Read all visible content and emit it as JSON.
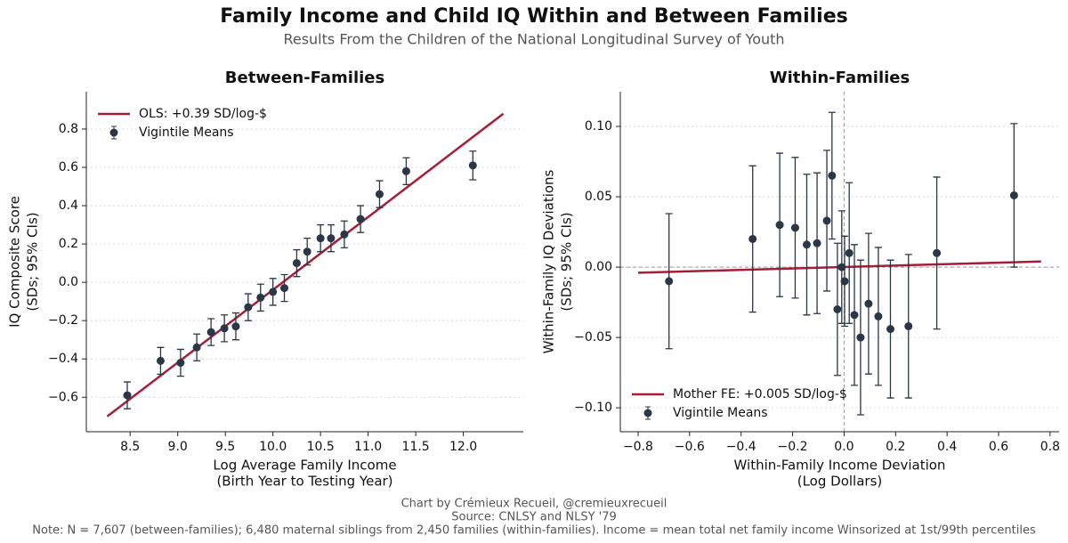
{
  "title": "Family Income and Child IQ Within and Between Families",
  "subtitle": "Results From the Children of the National Longitudinal Survey of Youth",
  "notes": [
    "Chart by Crémieux Recueil, @cremieuxrecueil",
    "Source: CNLSY and NLSY '79",
    "Note: N = 7,607 (between-families); 6,480 maternal siblings from 2,450 families (within-families). Income = mean total net family income Winsorized at 1st/99th percentiles"
  ],
  "chart_data": [
    {
      "type": "scatter",
      "title": "Between-Families",
      "x_label": [
        "Log Average Family Income",
        "(Birth Year to Testing Year)"
      ],
      "y_label": [
        "IQ Composite Score",
        "(SDs; 95% CIs)"
      ],
      "xlim": [
        8.04,
        12.63
      ],
      "ylim": [
        -0.78,
        0.995
      ],
      "xticks": [
        8.5,
        {
          "value": 9,
          "label": "9.0"
        },
        9.5,
        {
          "value": 10,
          "label": "10.0"
        },
        10.5,
        {
          "value": 11,
          "label": "11.0"
        },
        11.5,
        {
          "value": 12,
          "label": "12.0"
        }
      ],
      "yticks": [
        {
          "value": -0.6,
          "label": "−0.6"
        },
        {
          "value": -0.4,
          "label": "−0.4"
        },
        {
          "value": -0.2,
          "label": "−0.2"
        },
        {
          "value": 0,
          "label": "0.0"
        },
        0.2,
        0.4,
        0.6,
        0.8
      ],
      "grid": true,
      "zero_lines": false,
      "legend": "upper-left",
      "series": [
        {
          "name": "OLS: +0.39 SD/log-$",
          "type": "line",
          "color": "#a61e36",
          "x": [
            8.26,
            12.42
          ],
          "values": [
            -0.7,
            0.88
          ]
        },
        {
          "name": "Vigintile Means",
          "type": "errorbar",
          "color": "#2b3647",
          "x": [
            8.47,
            8.82,
            9.03,
            9.2,
            9.35,
            9.49,
            9.61,
            9.74,
            9.87,
            10.0,
            10.12,
            10.25,
            10.36,
            10.5,
            10.61,
            10.75,
            10.92,
            11.12,
            11.4,
            12.1
          ],
          "values": [
            -0.59,
            -0.41,
            -0.42,
            -0.34,
            -0.26,
            -0.24,
            -0.23,
            -0.13,
            -0.08,
            -0.05,
            -0.03,
            0.1,
            0.16,
            0.23,
            0.23,
            0.25,
            0.33,
            0.46,
            0.58,
            0.61
          ],
          "errors": [
            0.07,
            0.07,
            0.07,
            0.07,
            0.07,
            0.07,
            0.07,
            0.07,
            0.07,
            0.07,
            0.07,
            0.07,
            0.07,
            0.07,
            0.07,
            0.07,
            0.07,
            0.07,
            0.07,
            0.075
          ]
        }
      ]
    },
    {
      "type": "scatter",
      "title": "Within-Families",
      "x_label": [
        "Within-Family Income Deviation",
        "(Log Dollars)"
      ],
      "y_label": [
        "Within-Family IQ Deviations",
        "(SDs; 95% CIs)"
      ],
      "xlim": [
        -0.869,
        0.835
      ],
      "ylim": [
        -0.117,
        0.1247
      ],
      "xticks": [
        {
          "value": -0.8,
          "label": "−0.8"
        },
        {
          "value": -0.6,
          "label": "−0.6"
        },
        {
          "value": -0.4,
          "label": "−0.4"
        },
        {
          "value": -0.2,
          "label": "−0.2"
        },
        {
          "value": 0,
          "label": "0.0"
        },
        0.2,
        0.4,
        0.6,
        0.8
      ],
      "yticks": [
        {
          "value": -0.1,
          "label": "−0.10"
        },
        {
          "value": -0.05,
          "label": "−0.05"
        },
        {
          "value": 0,
          "label": "0.00"
        },
        0.05,
        {
          "value": 0.1,
          "label": "0.10"
        }
      ],
      "grid": true,
      "zero_lines": true,
      "legend": "lower-left",
      "series": [
        {
          "name": "Mother FE: +0.005 SD/log-$",
          "type": "line",
          "color": "#a61e36",
          "x": [
            -0.8,
            0.765
          ],
          "values": [
            -0.004,
            0.004
          ]
        },
        {
          "name": "Vigintile Means",
          "type": "errorbar",
          "color": "#2b3647",
          "x": [
            -0.68,
            -0.355,
            -0.25,
            -0.19,
            -0.145,
            -0.105,
            -0.067,
            -0.047,
            -0.026,
            -0.009,
            0.002,
            0.02,
            0.04,
            0.064,
            0.095,
            0.133,
            0.18,
            0.25,
            0.36,
            0.66
          ],
          "values": [
            -0.01,
            0.02,
            0.03,
            0.028,
            0.016,
            0.017,
            0.033,
            0.065,
            -0.03,
            0.0,
            -0.01,
            0.01,
            -0.034,
            -0.05,
            -0.026,
            -0.035,
            -0.044,
            -0.042,
            0.01,
            0.051
          ],
          "errors": [
            0.048,
            0.052,
            0.051,
            0.05,
            0.05,
            0.05,
            0.05,
            0.045,
            0.047,
            0.04,
            0.032,
            0.05,
            0.05,
            0.055,
            0.05,
            0.049,
            0.049,
            0.051,
            0.054,
            0.051
          ]
        }
      ]
    }
  ]
}
